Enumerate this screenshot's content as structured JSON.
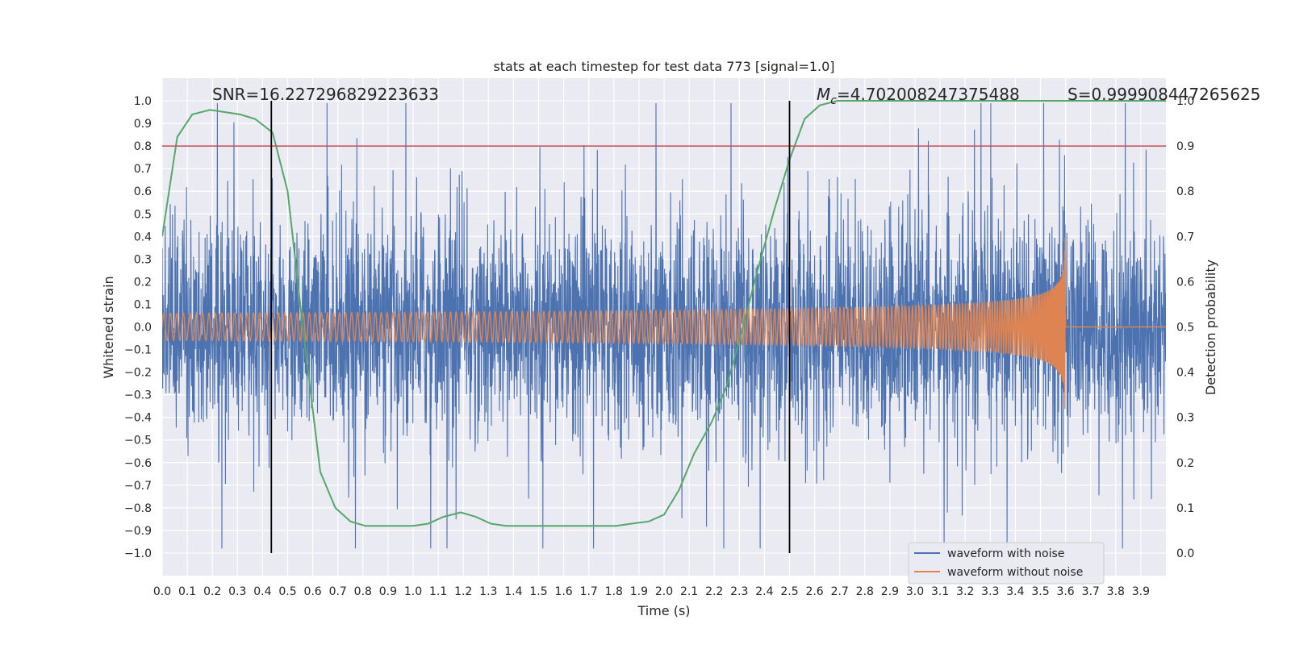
{
  "chart_data": {
    "type": "line",
    "title": "stats at each timestep for test data 773 [signal=1.0]",
    "xlabel": "Time (s)",
    "ylabel": "Whitened strain",
    "ylabel_right": "Detection probability",
    "xlim": [
      0.0,
      4.0
    ],
    "ylim": [
      -1.1,
      1.1
    ],
    "ylim_right": [
      -0.05,
      1.05
    ],
    "x_ticks": [
      0.0,
      0.1,
      0.2,
      0.3,
      0.4,
      0.5,
      0.6,
      0.7,
      0.8,
      0.9,
      1.0,
      1.1,
      1.2,
      1.3,
      1.4,
      1.5,
      1.6,
      1.7,
      1.8,
      1.9,
      2.0,
      2.1,
      2.2,
      2.3,
      2.4,
      2.5,
      2.6,
      2.7,
      2.8,
      2.9,
      3.0,
      3.1,
      3.2,
      3.3,
      3.4,
      3.5,
      3.6,
      3.7,
      3.8,
      3.9
    ],
    "x_tick_labels": [
      "0.0",
      "0.1",
      "0.2",
      "0.3",
      "0.4",
      "0.5",
      "0.6",
      "0.7",
      "0.8",
      "0.9",
      "1.0",
      "1.1",
      "1.2",
      "1.3",
      "1.4",
      "1.5",
      "1.6",
      "1.7",
      "1.8",
      "1.9",
      "2.0",
      "2.1",
      "2.2",
      "2.3",
      "2.4",
      "2.5",
      "2.6",
      "2.7",
      "2.8",
      "2.9",
      "3.0",
      "3.1",
      "3.2",
      "3.3",
      "3.4",
      "3.5",
      "3.6",
      "3.7",
      "3.8",
      "3.9"
    ],
    "y_ticks": [
      1.0,
      0.9,
      0.8,
      0.7,
      0.6,
      0.5,
      0.4,
      0.3,
      0.2,
      0.1,
      0.0,
      -0.1,
      -0.2,
      -0.3,
      -0.4,
      -0.5,
      -0.6,
      -0.7,
      -0.8,
      -0.9,
      -1.0
    ],
    "y_tick_labels": [
      "1.0",
      "0.9",
      "0.8",
      "0.7",
      "0.6",
      "0.5",
      "0.4",
      "0.3",
      "0.2",
      "0.1",
      "0.0",
      "−0.1",
      "−0.2",
      "−0.3",
      "−0.4",
      "−0.5",
      "−0.6",
      "−0.7",
      "−0.8",
      "−0.9",
      "−1.0"
    ],
    "y_right_ticks": [
      1.0,
      0.9,
      0.8,
      0.7,
      0.6,
      0.5,
      0.4,
      0.3,
      0.2,
      0.1,
      0.0
    ],
    "y_right_tick_labels": [
      "1.0",
      "0.9",
      "0.8",
      "0.7",
      "0.6",
      "0.5",
      "0.4",
      "0.3",
      "0.2",
      "0.1",
      "0.0"
    ],
    "threshold": {
      "value": 0.9,
      "axis": "right",
      "color": "#c44e52"
    },
    "vlines": [
      {
        "x": 0.435,
        "ymin": -1.0,
        "ymax": 1.0,
        "color": "#000000"
      },
      {
        "x": 2.5,
        "ymin": -1.0,
        "ymax": 1.0,
        "color": "#000000"
      }
    ],
    "annotations": {
      "snr": "SNR=16.227296829223633",
      "mc_symbol": "M",
      "mc_sub": "c",
      "mc_value": "=4.702008247375488",
      "s": "S=0.999908447265625"
    },
    "legend": {
      "position": "lower-right",
      "entries": [
        "waveform with noise",
        "waveform without noise"
      ]
    },
    "series": [
      {
        "name": "waveform with noise",
        "color": "#4c72b0",
        "axis": "left",
        "description": "dense noisy whitened strain, roughly within -1.0 to 1.0"
      },
      {
        "name": "waveform without noise",
        "color": "#dd8452",
        "axis": "left",
        "chirp": {
          "t_merger": 3.6,
          "amp_start": 0.06,
          "amp_peak": 0.43,
          "f_start": 48
        }
      },
      {
        "name": "detection probability",
        "color": "#55a868",
        "axis": "right",
        "x": [
          0.0,
          0.06,
          0.12,
          0.19,
          0.31,
          0.37,
          0.44,
          0.5,
          0.56,
          0.63,
          0.69,
          0.75,
          0.81,
          0.87,
          0.94,
          1.0,
          1.06,
          1.12,
          1.19,
          1.25,
          1.31,
          1.37,
          1.44,
          1.5,
          1.56,
          1.62,
          1.69,
          1.75,
          1.81,
          1.87,
          1.94,
          2.0,
          2.06,
          2.12,
          2.19,
          2.25,
          2.31,
          2.37,
          2.44,
          2.5,
          2.56,
          2.62,
          2.69,
          2.75,
          2.81,
          2.87,
          2.94,
          3.0,
          3.06,
          3.12,
          3.19,
          3.25,
          3.31,
          3.37,
          3.44,
          3.5,
          3.56,
          3.62,
          3.69,
          3.75,
          3.81,
          3.87,
          3.94,
          4.0
        ],
        "y": [
          0.7,
          0.92,
          0.97,
          0.98,
          0.97,
          0.96,
          0.93,
          0.8,
          0.5,
          0.18,
          0.1,
          0.07,
          0.06,
          0.06,
          0.06,
          0.06,
          0.065,
          0.08,
          0.09,
          0.08,
          0.065,
          0.06,
          0.06,
          0.06,
          0.06,
          0.06,
          0.06,
          0.06,
          0.06,
          0.065,
          0.07,
          0.085,
          0.14,
          0.22,
          0.29,
          0.37,
          0.49,
          0.62,
          0.76,
          0.87,
          0.96,
          0.99,
          1.0,
          1.0,
          1.0,
          1.0,
          1.0,
          1.0,
          1.0,
          1.0,
          1.0,
          1.0,
          1.0,
          1.0,
          1.0,
          1.0,
          1.0,
          1.0,
          1.0,
          1.0,
          1.0,
          1.0,
          1.0,
          1.0
        ]
      }
    ]
  }
}
